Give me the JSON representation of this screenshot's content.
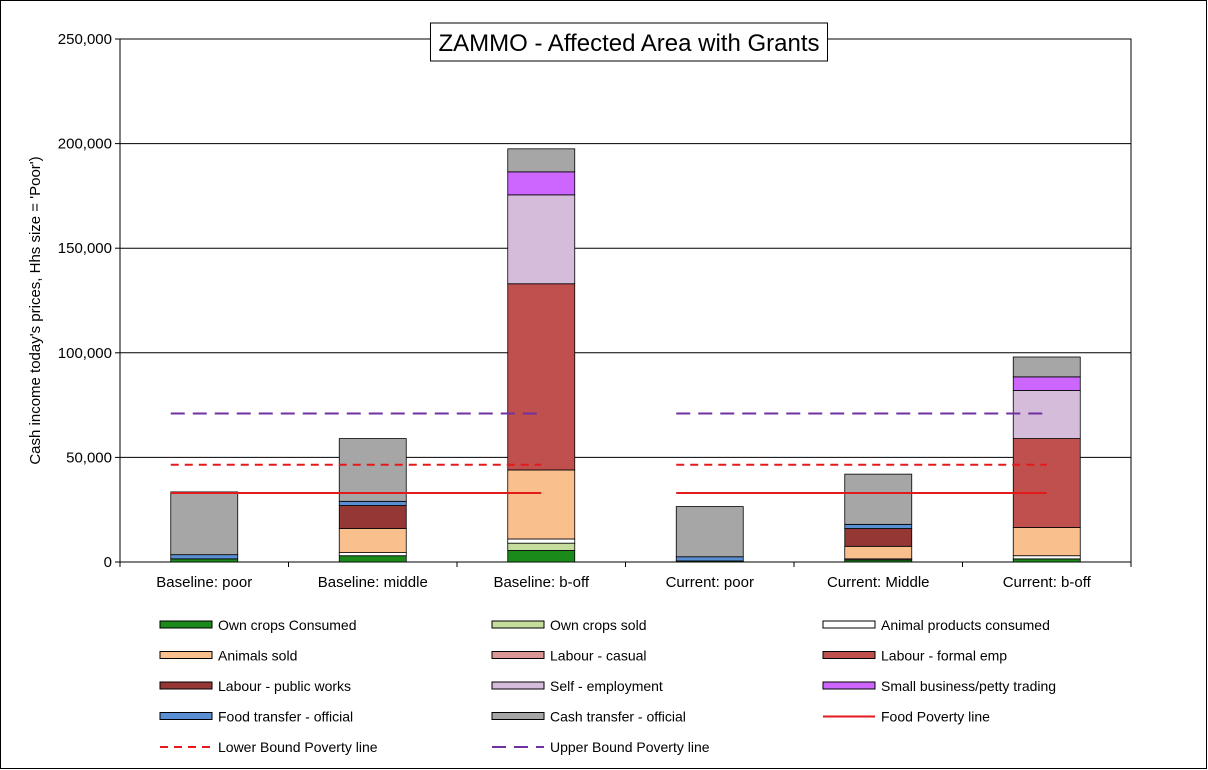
{
  "chart_data": {
    "type": "bar",
    "stacked": true,
    "title": "ZAMMO - Affected Area with Grants",
    "xlabel": "",
    "ylabel": "Cash income today's prices, Hhs size = 'Poor')",
    "ylim": [
      0,
      250000
    ],
    "yticks": [
      0,
      50000,
      100000,
      150000,
      200000,
      250000
    ],
    "ytick_labels": [
      "0",
      "50,000",
      "100,000",
      "150,000",
      "200,000",
      "250,000"
    ],
    "grid": true,
    "legend_position": "bottom",
    "categories": [
      "Baseline: poor",
      "Baseline: middle",
      "Baseline: b-off",
      "Current: poor",
      "Current: Middle",
      "Current: b-off"
    ],
    "series": [
      {
        "name": "Own crops Consumed",
        "color": "#1a8a1a",
        "values": [
          1500,
          3000,
          5500,
          500,
          1000,
          1500
        ]
      },
      {
        "name": "Own crops sold",
        "color": "#c4dc9c",
        "values": [
          0,
          0,
          3500,
          0,
          0,
          0
        ]
      },
      {
        "name": "Animal products consumed",
        "color": "#ffffff",
        "values": [
          0,
          1500,
          2000,
          0,
          500,
          1500
        ]
      },
      {
        "name": "Animals sold",
        "color": "#f9c08e",
        "values": [
          0,
          11500,
          33000,
          0,
          6000,
          13500
        ]
      },
      {
        "name": "Labour - casual",
        "color": "#d99694",
        "values": [
          0,
          0,
          0,
          0,
          0,
          0
        ]
      },
      {
        "name": "Labour - formal emp",
        "color": "#c0504d",
        "values": [
          0,
          0,
          89000,
          0,
          0,
          42500
        ]
      },
      {
        "name": "Labour - public works",
        "color": "#953735",
        "values": [
          0,
          11000,
          0,
          0,
          8500,
          0
        ]
      },
      {
        "name": "Self - employment",
        "color": "#d6bcdb",
        "values": [
          0,
          0,
          42500,
          0,
          0,
          23000
        ]
      },
      {
        "name": "Small business/petty trading",
        "color": "#cc66ff",
        "values": [
          0,
          0,
          11000,
          0,
          0,
          6500
        ]
      },
      {
        "name": "Food transfer - official",
        "color": "#5b8fd4",
        "values": [
          2000,
          2000,
          0,
          2000,
          2000,
          0
        ]
      },
      {
        "name": "Cash transfer - official",
        "color": "#a6a6a6",
        "values": [
          30000,
          30000,
          11000,
          24000,
          24000,
          9500
        ]
      }
    ],
    "lines": [
      {
        "name": "Food Poverty line",
        "color": "#e31a1c",
        "style": "solid",
        "y": 33000,
        "groups": [
          [
            0,
            2
          ],
          [
            3,
            5
          ]
        ]
      },
      {
        "name": "Lower Bound Poverty line",
        "color": "#e31a1c",
        "style": "dash",
        "y": 46500,
        "groups": [
          [
            0,
            2
          ],
          [
            3,
            5
          ]
        ]
      },
      {
        "name": "Upper Bound Poverty line",
        "color": "#7030a0",
        "style": "longdash",
        "y": 71000,
        "groups": [
          [
            0,
            2
          ],
          [
            3,
            5
          ]
        ]
      }
    ]
  }
}
